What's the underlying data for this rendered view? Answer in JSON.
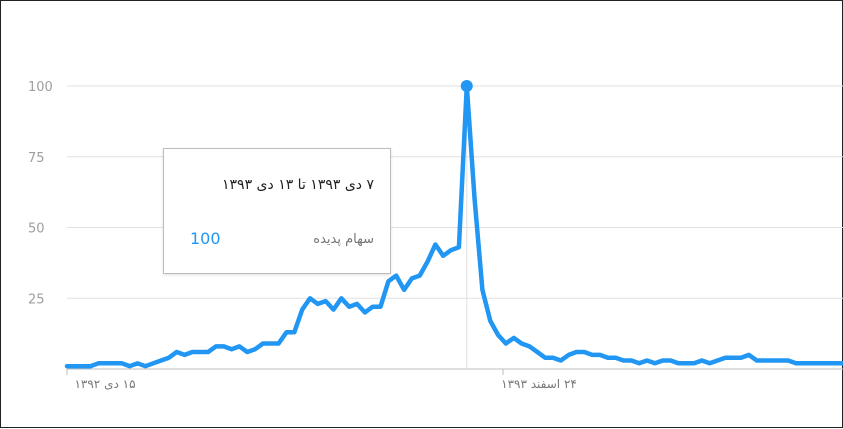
{
  "chart_data": {
    "type": "line",
    "ylim": [
      0,
      100
    ],
    "yticks": [
      "100",
      "75",
      "50",
      "25"
    ],
    "xtick_labels": [
      "۱۵ دی ۱۳۹۲",
      "۲۴ اسفند ۱۳۹۳"
    ],
    "grid": true,
    "series": [
      {
        "color": "#2196f3",
        "values": [
          1,
          1,
          1,
          1,
          2,
          2,
          2,
          2,
          1,
          2,
          1,
          2,
          3,
          4,
          6,
          5,
          6,
          6,
          6,
          8,
          8,
          7,
          8,
          6,
          7,
          9,
          9,
          9,
          13,
          13,
          21,
          25,
          23,
          24,
          21,
          25,
          22,
          23,
          20,
          22,
          22,
          31,
          33,
          28,
          32,
          33,
          38,
          44,
          40,
          42,
          43,
          100,
          60,
          28,
          17,
          12,
          9,
          11,
          9,
          8,
          6,
          4,
          4,
          3,
          5,
          6,
          6,
          5,
          5,
          4,
          4,
          3,
          3,
          2,
          3,
          2,
          3,
          3,
          2,
          2,
          2,
          3,
          2,
          3,
          4,
          4,
          4,
          5,
          3,
          3,
          3,
          3,
          3,
          2,
          2,
          2,
          2,
          2,
          2,
          2
        ]
      }
    ],
    "peak_index": 51
  },
  "tooltip": {
    "date": "۷ دی ۱۳۹۳ تا ۱۳ دی ۱۳۹۳",
    "series_label": "سهام پدیده",
    "value": "100"
  },
  "colors": {
    "line": "#2196f3",
    "grid": "#e0e0e0",
    "axis": "#9e9e9e"
  }
}
